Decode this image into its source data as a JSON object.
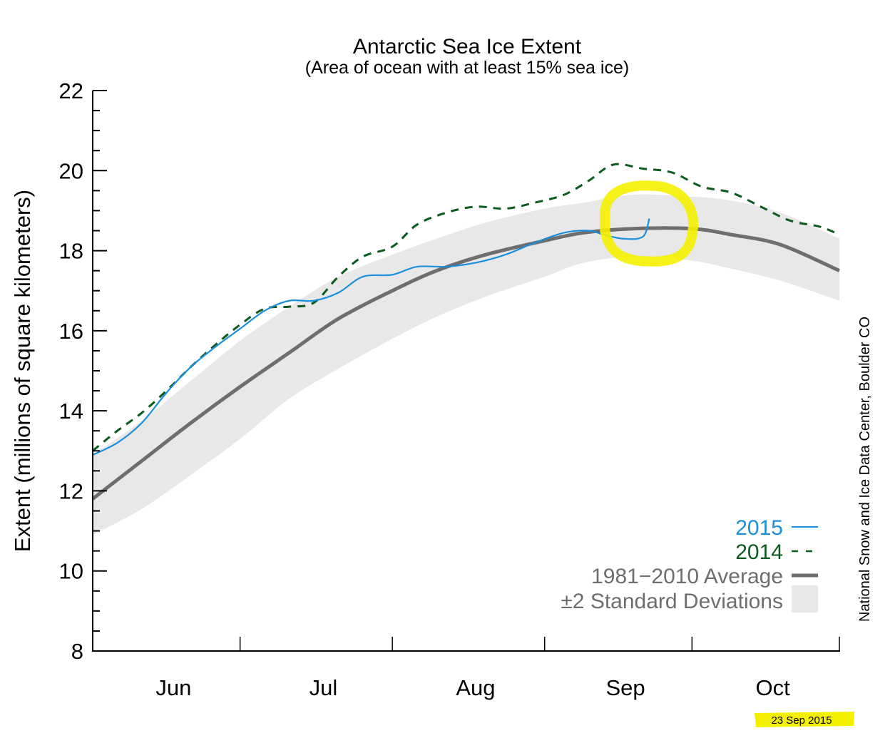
{
  "chart_data": {
    "type": "line",
    "title": "Antarctic Sea Ice Extent",
    "subtitle": "(Area of ocean with at least 15% sea ice)",
    "xlabel": "",
    "ylabel": "Extent (millions of square kilometers)",
    "ylim": [
      8,
      22
    ],
    "yticks": [
      8,
      10,
      12,
      14,
      16,
      18,
      20,
      22
    ],
    "y_minor_step": 0.5,
    "x_unit": "days since Jun 1",
    "xlim": [
      0,
      152
    ],
    "month_boundaries": [
      30,
      61,
      92,
      122
    ],
    "month_labels": [
      {
        "label": "Jun",
        "center": 15
      },
      {
        "label": "Jul",
        "center": 45.5
      },
      {
        "label": "Aug",
        "center": 76.5
      },
      {
        "label": "Sep",
        "center": 107
      },
      {
        "label": "Oct",
        "center": 137
      }
    ],
    "grid": false,
    "legend_position": "bottom-right",
    "series": [
      {
        "name": "±2 Standard Deviations",
        "kind": "band",
        "color": "#e8e8e8",
        "x": [
          0,
          10,
          20,
          30,
          40,
          50,
          61,
          70,
          80,
          92,
          100,
          110,
          122,
          130,
          140,
          152
        ],
        "upper": [
          12.9,
          13.75,
          14.75,
          15.75,
          16.6,
          17.35,
          17.9,
          18.3,
          18.7,
          19.05,
          19.2,
          19.4,
          19.35,
          19.25,
          18.95,
          18.3
        ],
        "lower": [
          10.9,
          11.55,
          12.4,
          13.3,
          14.3,
          15.05,
          15.8,
          16.35,
          16.85,
          17.35,
          17.7,
          17.85,
          17.75,
          17.55,
          17.25,
          16.75
        ]
      },
      {
        "name": "1981−2010 Average",
        "kind": "line",
        "color": "#6e6e6e",
        "x": [
          0,
          10,
          20,
          30,
          40,
          50,
          61,
          70,
          80,
          92,
          100,
          110,
          122,
          130,
          140,
          152
        ],
        "values": [
          11.8,
          12.75,
          13.7,
          14.6,
          15.45,
          16.3,
          17.0,
          17.5,
          17.9,
          18.25,
          18.45,
          18.55,
          18.55,
          18.4,
          18.15,
          17.5
        ]
      },
      {
        "name": "2014",
        "kind": "dashed",
        "color": "#0b5a1e",
        "x": [
          0,
          5,
          10,
          15,
          20,
          25,
          30,
          35,
          40,
          45,
          50,
          55,
          61,
          66,
          72,
          78,
          84,
          90,
          96,
          101,
          106,
          112,
          118,
          124,
          130,
          136,
          142,
          148,
          152
        ],
        "values": [
          13.0,
          13.5,
          13.95,
          14.5,
          15.1,
          15.65,
          16.15,
          16.55,
          16.6,
          16.7,
          17.35,
          17.85,
          18.1,
          18.65,
          18.95,
          19.1,
          19.05,
          19.2,
          19.4,
          19.75,
          20.15,
          20.05,
          19.95,
          19.6,
          19.45,
          19.1,
          18.75,
          18.6,
          18.4
        ]
      },
      {
        "name": "2015",
        "kind": "line",
        "color": "#1a8fdc",
        "x": [
          0,
          5,
          10,
          15,
          20,
          25,
          30,
          35,
          40,
          45,
          50,
          55,
          61,
          66,
          72,
          78,
          84,
          90,
          96,
          101,
          104,
          108,
          112,
          113.3
        ],
        "values": [
          12.9,
          13.2,
          13.7,
          14.45,
          15.1,
          15.6,
          16.05,
          16.5,
          16.75,
          16.75,
          16.95,
          17.35,
          17.4,
          17.6,
          17.6,
          17.7,
          17.9,
          18.2,
          18.45,
          18.5,
          18.4,
          18.3,
          18.35,
          18.8
        ]
      }
    ],
    "annotations": [
      {
        "type": "hand-drawn-circle",
        "color": "#f5f000",
        "around_x": 113,
        "around_y": 18.5
      },
      {
        "type": "highlighted-date",
        "text": "23 Sep 2015",
        "color": "#f5f000"
      }
    ]
  },
  "labels": {
    "title": "Antarctic Sea Ice Extent",
    "subtitle": "(Area of ocean with at least 15% sea ice)",
    "ylabel": "Extent (millions of square kilometers)",
    "credit": "National Snow and Ice Data Center, Boulder CO",
    "date_stamp": "23 Sep 2015"
  },
  "legend": [
    {
      "label": "2015",
      "color": "#1a8fdc",
      "swatch": "line"
    },
    {
      "label": "2014",
      "color": "#0b5a1e",
      "swatch": "dashed"
    },
    {
      "label": "1981−2010 Average",
      "color": "#6e6e6e",
      "swatch": "thick-line"
    },
    {
      "label": "±2 Standard Deviations",
      "color": "#6e6e6e",
      "swatch": "box",
      "swatch_color": "#e8e8e8"
    }
  ]
}
